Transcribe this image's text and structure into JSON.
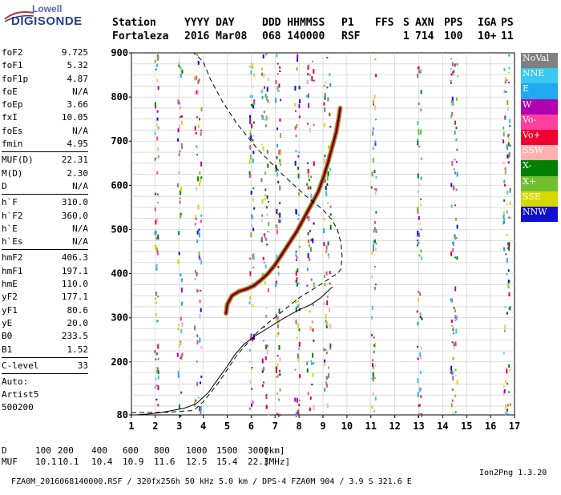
{
  "logo": {
    "line1": "Lowell",
    "line2": "DIGISONDE"
  },
  "header": {
    "row1": [
      "Station",
      "YYYY DAY",
      "DDD HHMMSS",
      "P1",
      "FFS",
      "S",
      "AXN",
      "PPS",
      "IGA",
      "PS"
    ],
    "row2": [
      "Fortaleza",
      "2016 Mar08",
      "068 140000",
      "RSF",
      "",
      "1",
      "714",
      "100",
      "10+",
      "11"
    ]
  },
  "params": {
    "group1": [
      {
        "label": "foF2",
        "value": "9.725"
      },
      {
        "label": "foF1",
        "value": "5.32"
      },
      {
        "label": "foF1p",
        "value": "4.87"
      },
      {
        "label": "foE",
        "value": "N/A"
      },
      {
        "label": "foEp",
        "value": "3.66"
      },
      {
        "label": "fxI",
        "value": "10.05"
      },
      {
        "label": "foEs",
        "value": "N/A"
      },
      {
        "label": "fmin",
        "value": "4.95"
      }
    ],
    "group2": [
      {
        "label": "MUF(D)",
        "value": "22.31"
      },
      {
        "label": "M(D)",
        "value": "2.30"
      },
      {
        "label": "D",
        "value": "N/A"
      }
    ],
    "group3": [
      {
        "label": "h`F",
        "value": "310.0"
      },
      {
        "label": "h`F2",
        "value": "360.0"
      },
      {
        "label": "h`E",
        "value": "N/A"
      },
      {
        "label": "h`Es",
        "value": "N/A"
      }
    ],
    "group4": [
      {
        "label": "hmF2",
        "value": "406.3"
      },
      {
        "label": "hmF1",
        "value": "197.1"
      },
      {
        "label": "hmE",
        "value": "110.0"
      },
      {
        "label": "yF2",
        "value": "177.1"
      },
      {
        "label": "yF1",
        "value": "80.6"
      },
      {
        "label": "yE",
        "value": "20.0"
      },
      {
        "label": "B0",
        "value": "233.5"
      },
      {
        "label": "B1",
        "value": "1.52"
      }
    ],
    "group5": [
      {
        "label": "C-level",
        "value": "33"
      }
    ],
    "extra": [
      "Auto:",
      "Artist5",
      "500200"
    ]
  },
  "legend": [
    {
      "label": "NoVal",
      "color": "#808080"
    },
    {
      "label": "NNE",
      "color": "#38c8f0"
    },
    {
      "label": "E",
      "color": "#20a8f0"
    },
    {
      "label": "W",
      "color": "#b000b0"
    },
    {
      "label": "Vo-",
      "color": "#ff40a0"
    },
    {
      "label": "Vo+",
      "color": "#f00030"
    },
    {
      "label": "SSW",
      "color": "#ffb0b0"
    },
    {
      "label": "X-",
      "color": "#008000"
    },
    {
      "label": "X+",
      "color": "#70c030"
    },
    {
      "label": "SSE",
      "color": "#d8d800"
    },
    {
      "label": "NNW",
      "color": "#1010d0"
    }
  ],
  "bottom": {
    "d_label": "D",
    "d_values": [
      "100",
      "200",
      "400",
      "600",
      "800",
      "1000",
      "1500",
      "3000"
    ],
    "d_unit": "[km]",
    "muf_label": "MUF",
    "muf_values": [
      "10.1",
      "10.1",
      "10.4",
      "10.9",
      "11.6",
      "12.5",
      "15.4",
      "22.3"
    ],
    "muf_unit": "[MHz]"
  },
  "footer": {
    "left": "FZA0M_2016068140000.RSF / 320fx256h 50 kHz 5.0 km / DPS-4 FZA0M 904 / 3.9 S 321.6 E",
    "right": "Ion2Png 1.3.20"
  },
  "chart_data": {
    "type": "scatter",
    "title": "",
    "xlabel": "",
    "ylabel": "",
    "xlim": [
      1,
      17
    ],
    "ylim": [
      80,
      900
    ],
    "x_ticks": [
      "1",
      "2",
      "3",
      "4",
      "5",
      "6",
      "7",
      "8",
      "9",
      "10",
      "11",
      "12",
      "13",
      "14",
      "15",
      "16",
      "17"
    ],
    "y_ticks": [
      "80",
      "200",
      "300",
      "400",
      "500",
      "600",
      "700",
      "800",
      "900"
    ],
    "grid": true,
    "echo_trace": {
      "x": [
        4.95,
        5.0,
        5.2,
        5.5,
        5.8,
        6.1,
        6.4,
        6.7,
        7.0,
        7.3,
        7.6,
        7.9,
        8.2,
        8.5,
        8.8,
        9.0,
        9.2,
        9.4,
        9.55,
        9.65,
        9.72
      ],
      "y": [
        310,
        330,
        350,
        360,
        365,
        372,
        385,
        400,
        420,
        445,
        470,
        495,
        525,
        555,
        585,
        615,
        650,
        690,
        720,
        750,
        775
      ]
    },
    "profile_curve": {
      "x": [
        1.2,
        1.7,
        2.2,
        2.7,
        3.2,
        3.7,
        4.2,
        4.6,
        5.0,
        5.3,
        5.7,
        6.2,
        6.8,
        7.4,
        8.0,
        8.5,
        8.9,
        9.2,
        9.4
      ],
      "y": [
        80,
        82,
        85,
        90,
        95,
        105,
        130,
        160,
        190,
        215,
        240,
        260,
        280,
        300,
        318,
        330,
        345,
        360,
        370
      ]
    },
    "model_dashed": {
      "x": [
        1.0,
        2.5,
        3.6,
        4.0,
        4.6,
        5.4,
        6.3,
        7.2,
        8.0,
        8.8,
        9.3,
        9.6,
        9.75,
        9.8,
        9.75,
        9.6,
        9.4,
        9.0,
        8.3,
        7.3,
        6.3,
        5.4,
        4.8,
        4.3,
        4.0,
        3.6
      ],
      "y": [
        85,
        86,
        90,
        110,
        150,
        215,
        270,
        310,
        345,
        372,
        390,
        400,
        410,
        440,
        470,
        500,
        520,
        545,
        575,
        625,
        680,
        740,
        790,
        840,
        880,
        900
      ]
    }
  }
}
